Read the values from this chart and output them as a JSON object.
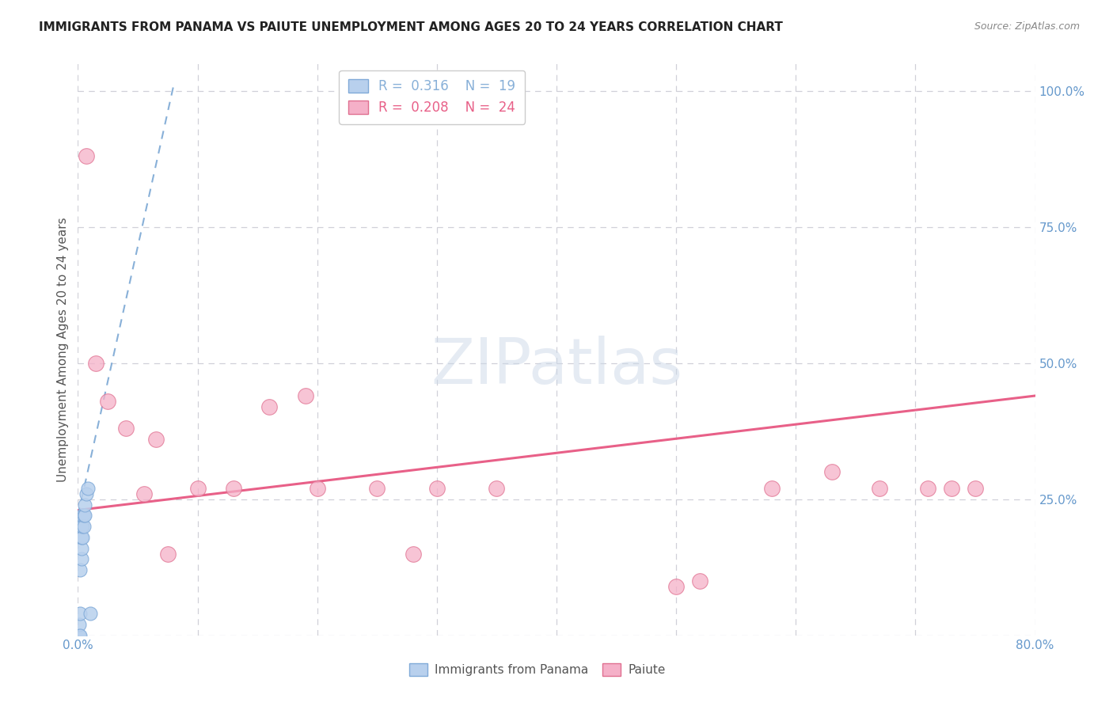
{
  "title": "IMMIGRANTS FROM PANAMA VS PAIUTE UNEMPLOYMENT AMONG AGES 20 TO 24 YEARS CORRELATION CHART",
  "source": "Source: ZipAtlas.com",
  "ylabel": "Unemployment Among Ages 20 to 24 years",
  "xlim": [
    0.0,
    0.8
  ],
  "ylim": [
    0.0,
    1.05
  ],
  "xticks": [
    0.0,
    0.1,
    0.2,
    0.3,
    0.4,
    0.5,
    0.6,
    0.7,
    0.8
  ],
  "xticklabels": [
    "0.0%",
    "",
    "",
    "",
    "",
    "",
    "",
    "",
    "80.0%"
  ],
  "yticks": [
    0.25,
    0.5,
    0.75,
    1.0
  ],
  "yticklabels": [
    "25.0%",
    "50.0%",
    "75.0%",
    "100.0%"
  ],
  "blue_R": 0.316,
  "blue_N": 19,
  "pink_R": 0.208,
  "pink_N": 24,
  "blue_label": "Immigrants from Panama",
  "pink_label": "Paiute",
  "watermark_text": "ZIPatlas",
  "blue_scatter_x": [
    0.001,
    0.001,
    0.002,
    0.002,
    0.002,
    0.003,
    0.003,
    0.003,
    0.003,
    0.004,
    0.004,
    0.004,
    0.005,
    0.005,
    0.006,
    0.006,
    0.007,
    0.008,
    0.01
  ],
  "blue_scatter_y": [
    0.0,
    0.02,
    0.0,
    0.04,
    0.12,
    0.14,
    0.16,
    0.18,
    0.2,
    0.18,
    0.2,
    0.22,
    0.2,
    0.22,
    0.22,
    0.24,
    0.26,
    0.27,
    0.04
  ],
  "pink_scatter_x": [
    0.007,
    0.015,
    0.025,
    0.04,
    0.055,
    0.065,
    0.075,
    0.1,
    0.13,
    0.16,
    0.19,
    0.2,
    0.25,
    0.28,
    0.3,
    0.35,
    0.5,
    0.52,
    0.58,
    0.63,
    0.67,
    0.71,
    0.73,
    0.75
  ],
  "pink_scatter_y": [
    0.88,
    0.5,
    0.43,
    0.38,
    0.26,
    0.36,
    0.15,
    0.27,
    0.27,
    0.42,
    0.44,
    0.27,
    0.27,
    0.15,
    0.27,
    0.27,
    0.09,
    0.1,
    0.27,
    0.3,
    0.27,
    0.27,
    0.27,
    0.27
  ],
  "blue_line_x": [
    0.0,
    0.08
  ],
  "blue_line_y": [
    0.22,
    1.01
  ],
  "pink_line_x": [
    0.0,
    0.8
  ],
  "pink_line_y": [
    0.23,
    0.44
  ],
  "background_color": "#ffffff",
  "grid_color": "#d0d0d8",
  "blue_dot_face": "#b8d0ed",
  "blue_dot_edge": "#80aad8",
  "pink_dot_face": "#f5b0c8",
  "pink_dot_edge": "#e07090",
  "blue_line_color": "#88b0d8",
  "pink_line_color": "#e86088",
  "title_color": "#222222",
  "axis_label_color": "#555555",
  "right_tick_color": "#6699cc",
  "source_color": "#888888"
}
